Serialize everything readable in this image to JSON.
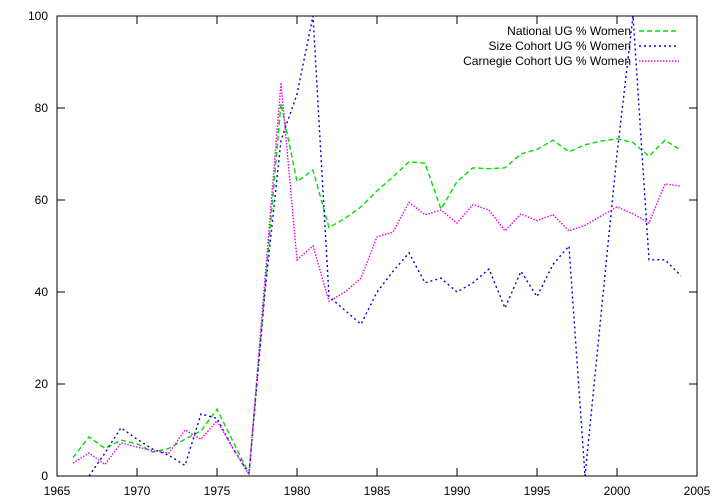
{
  "chart_data": {
    "type": "line",
    "title": "",
    "xlabel": "",
    "ylabel": "",
    "xlim": [
      1965,
      2005
    ],
    "ylim": [
      0,
      100
    ],
    "xticks": [
      1965,
      1970,
      1975,
      1980,
      1985,
      1990,
      1995,
      2000,
      2005
    ],
    "yticks": [
      0,
      20,
      40,
      60,
      80,
      100
    ],
    "grid": false,
    "legend_position": "top-right",
    "series": [
      {
        "name": "National UG % Women",
        "color": "#00dd00",
        "dash": "dashed",
        "x": [
          1966,
          1967,
          1968,
          1969,
          1970,
          1971,
          1972,
          1973,
          1974,
          1975,
          1976,
          1977,
          1978,
          1979,
          1980,
          1981,
          1982,
          1983,
          1984,
          1985,
          1986,
          1987,
          1988,
          1989,
          1990,
          1991,
          1992,
          1993,
          1994,
          1995,
          1996,
          1997,
          1998,
          1999,
          2000,
          2001,
          2002,
          2003,
          2004
        ],
        "y": [
          4,
          8.5,
          6,
          7.8,
          7,
          5.2,
          6,
          8,
          9.8,
          14.5,
          7.5,
          0.5,
          41,
          81,
          64,
          66.5,
          54,
          56,
          58.5,
          62,
          65,
          68.3,
          68,
          58,
          64,
          67,
          66.8,
          67,
          70,
          71,
          73,
          70.5,
          72,
          72.8,
          73.3,
          72.5,
          69.5,
          73,
          70.8
        ]
      },
      {
        "name": "Size Cohort UG % Women",
        "color": "#0000dd",
        "dash": "dotted",
        "x": [
          1967,
          1968,
          1969,
          1970,
          1971,
          1972,
          1973,
          1974,
          1975,
          1976,
          1977,
          1978,
          1979,
          1980,
          1981,
          1982,
          1983,
          1984,
          1985,
          1986,
          1987,
          1988,
          1989,
          1990,
          1991,
          1992,
          1993,
          1994,
          1995,
          1996,
          1997,
          1998,
          1999,
          2000,
          2001,
          2002,
          2003,
          2004
        ],
        "y": [
          0,
          5,
          10.5,
          8,
          5.8,
          4.5,
          2.3,
          13.5,
          12.5,
          6,
          0.5,
          40,
          73,
          83,
          100,
          39,
          36,
          33,
          40,
          44.5,
          48.5,
          42,
          43,
          40,
          42,
          45,
          36.5,
          44.5,
          39,
          46,
          50,
          0,
          35,
          70,
          100,
          47,
          47,
          43.5
        ]
      },
      {
        "name": "Carnegie Cohort UG % Women",
        "color": "#ee00ee",
        "dash": "dot-fine",
        "x": [
          1966,
          1967,
          1968,
          1969,
          1970,
          1971,
          1972,
          1973,
          1974,
          1975,
          1976,
          1977,
          1978,
          1979,
          1980,
          1981,
          1982,
          1983,
          1984,
          1985,
          1986,
          1987,
          1988,
          1989,
          1990,
          1991,
          1992,
          1993,
          1994,
          1995,
          1996,
          1997,
          1998,
          1999,
          2000,
          2001,
          2002,
          2003,
          2004
        ],
        "y": [
          2.8,
          5,
          2.5,
          7.2,
          6.3,
          5.5,
          5,
          10,
          8,
          12,
          6,
          0.3,
          43,
          85.5,
          47,
          50,
          38,
          40,
          43,
          52,
          53,
          59.5,
          56.8,
          57.8,
          55,
          59,
          57.8,
          53.3,
          57,
          55.5,
          56.8,
          53.3,
          54.5,
          56.5,
          58.5,
          57,
          55,
          63.5,
          63
        ]
      }
    ]
  }
}
